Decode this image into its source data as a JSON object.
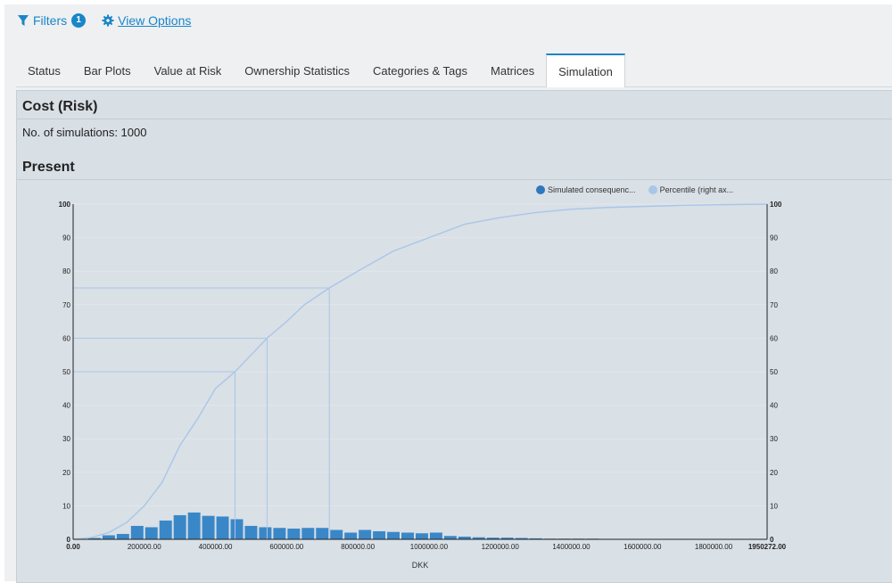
{
  "topbar": {
    "filters_label": "Filters",
    "filters_count": "1",
    "view_options_label": "View Options"
  },
  "tabs": [
    {
      "label": "Status",
      "active": false
    },
    {
      "label": "Bar Plots",
      "active": false
    },
    {
      "label": "Value at Risk",
      "active": false
    },
    {
      "label": "Ownership Statistics",
      "active": false
    },
    {
      "label": "Categories & Tags",
      "active": false
    },
    {
      "label": "Matrices",
      "active": false
    },
    {
      "label": "Simulation",
      "active": true
    }
  ],
  "panel": {
    "title": "Cost (Risk)",
    "simulations_text": "No. of simulations: 1000",
    "section_title": "Present"
  },
  "chart_data": {
    "type": "bar",
    "xlabel": "DKK",
    "xlim": [
      0,
      1950272
    ],
    "ylim": [
      0,
      100
    ],
    "y2lim": [
      0,
      100
    ],
    "x_ticks": [
      "0.00",
      "200000.00",
      "400000.00",
      "600000.00",
      "800000.00",
      "1000000.00",
      "1200000.00",
      "1400000.00",
      "1600000.00",
      "1800000.00",
      "1950272.00"
    ],
    "y_ticks": [
      0,
      10,
      20,
      30,
      40,
      50,
      60,
      70,
      80,
      90,
      100
    ],
    "series": [
      {
        "name": "Simulated consequenc...",
        "kind": "bar",
        "color": "#3a87c8",
        "bin_width": 40000,
        "bin_starts": [
          0,
          40000,
          80000,
          120000,
          160000,
          200000,
          240000,
          280000,
          320000,
          360000,
          400000,
          440000,
          480000,
          520000,
          560000,
          600000,
          640000,
          680000,
          720000,
          760000,
          800000,
          840000,
          880000,
          920000,
          960000,
          1000000,
          1040000,
          1080000,
          1120000,
          1160000,
          1200000,
          1240000,
          1280000,
          1320000,
          1360000,
          1400000,
          1440000,
          1480000,
          1520000,
          1560000,
          1600000,
          1640000,
          1680000,
          1720000,
          1760000,
          1800000,
          1840000,
          1880000
        ],
        "values": [
          0.2,
          0.4,
          1.2,
          1.6,
          4.0,
          3.6,
          5.6,
          7.2,
          8.0,
          7.0,
          6.8,
          6.0,
          4.0,
          3.6,
          3.4,
          3.2,
          3.4,
          3.4,
          2.8,
          2.0,
          2.8,
          2.4,
          2.2,
          2.0,
          1.8,
          2.0,
          1.0,
          0.8,
          0.6,
          0.5,
          0.5,
          0.4,
          0.3,
          0.2,
          0.2,
          0.2,
          0.2,
          0.1,
          0.1,
          0.1,
          0.1,
          0.1,
          0.1,
          0.1,
          0.1,
          0.1,
          0.1,
          0.1
        ]
      },
      {
        "name": "Percentile (right ax...",
        "kind": "line",
        "axis": "right",
        "color": "#a9c6e8",
        "x": [
          0,
          50000,
          100000,
          150000,
          200000,
          250000,
          300000,
          350000,
          400000,
          455000,
          500000,
          545000,
          600000,
          650000,
          720000,
          800000,
          900000,
          1000000,
          1100000,
          1200000,
          1300000,
          1400000,
          1500000,
          1600000,
          1700000,
          1800000,
          1950272
        ],
        "y": [
          0,
          0.5,
          2,
          5,
          10,
          17,
          28,
          36,
          45,
          50,
          55,
          60,
          65,
          70,
          75,
          80,
          86,
          90,
          94,
          96,
          97.5,
          98.5,
          99,
          99.3,
          99.6,
          99.8,
          100
        ]
      }
    ],
    "percentile_markers": [
      {
        "percentile": 50,
        "x": 455000
      },
      {
        "percentile": 60,
        "x": 545000
      },
      {
        "percentile": 75,
        "x": 720000
      }
    ]
  }
}
